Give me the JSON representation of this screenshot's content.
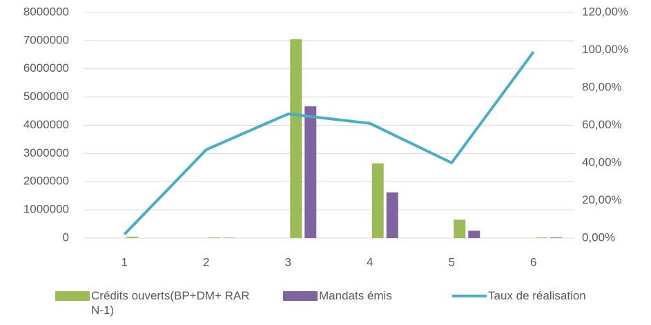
{
  "chart_data": {
    "type": "bar",
    "categories": [
      "1",
      "2",
      "3",
      "4",
      "5",
      "6"
    ],
    "series": [
      {
        "name": "Crédits ouverts(BP+DM+ RAR N-1)",
        "color": "#9bbb59",
        "values": [
          50000,
          20000,
          7050000,
          2650000,
          650000,
          20000
        ]
      },
      {
        "name": "Mandats émis",
        "color": "#8064a2",
        "values": [
          0,
          10000,
          4670000,
          1620000,
          260000,
          20000
        ]
      },
      {
        "name": "Taux de réalisation",
        "color": "#4bacc6",
        "type": "line",
        "axis": "y2",
        "values": [
          2,
          47,
          66,
          61,
          40,
          99
        ]
      }
    ],
    "ylim": [
      0,
      8000000
    ],
    "yticks": [
      0,
      1000000,
      2000000,
      3000000,
      4000000,
      5000000,
      6000000,
      7000000,
      8000000
    ],
    "y2lim": [
      0,
      120
    ],
    "y2ticks": [
      {
        "value": 0,
        "label": "0,00%"
      },
      {
        "value": 20,
        "label": "20,00%"
      },
      {
        "value": 40,
        "label": "40,00%"
      },
      {
        "value": 60,
        "label": "60,00%"
      },
      {
        "value": 80,
        "label": "80,00%"
      },
      {
        "value": 100,
        "label": "100,00%"
      },
      {
        "value": 120,
        "label": "120,00%"
      }
    ],
    "grid": true,
    "legend": "bottom"
  }
}
